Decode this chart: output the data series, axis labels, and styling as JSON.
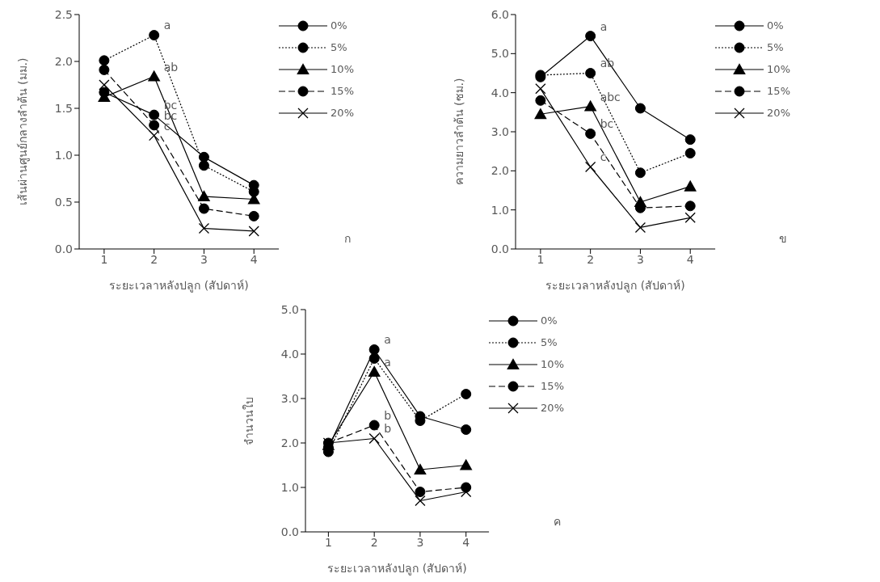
{
  "chart_data": [
    {
      "type": "line",
      "ylabel": "เส้นผ่านศูนย์กลางลำต้น (มม.)",
      "xlabel": "ระยะเวลาหลังปลูก (สัปดาห์)",
      "categories": [
        "1",
        "2",
        "3",
        "4"
      ],
      "ylim": [
        0,
        2.5
      ],
      "yticks": [
        {
          "value": 0,
          "label": "0.0"
        },
        {
          "value": 0.5,
          "label": "0.5"
        },
        {
          "value": 1,
          "label": "1.0"
        },
        {
          "value": 1.5,
          "label": "1.5"
        },
        {
          "value": 2,
          "label": "2.0"
        },
        {
          "value": 2.5,
          "label": "2.5"
        }
      ],
      "legend": "top right",
      "series": [
        {
          "name": "0%",
          "color": "#000000",
          "marker": "circle",
          "line_style": "solid",
          "values": [
            1.67,
            1.43,
            0.98,
            0.68
          ]
        },
        {
          "name": "5%",
          "color": "#000000",
          "marker": "circle",
          "line_style": "dotted",
          "values": [
            2.01,
            2.28,
            0.89,
            0.61
          ]
        },
        {
          "name": "10%",
          "color": "#000000",
          "marker": "triangle",
          "line_style": "solid",
          "values": [
            1.62,
            1.84,
            0.56,
            0.53
          ]
        },
        {
          "name": "15%",
          "color": "#000000",
          "marker": "circle",
          "line_style": "dashed",
          "values": [
            1.91,
            1.32,
            0.43,
            0.35
          ]
        },
        {
          "name": "20%",
          "color": "#000000",
          "marker": "cross",
          "line_style": "solid",
          "values": [
            1.75,
            1.21,
            0.22,
            0.19
          ]
        }
      ],
      "annotations": [
        {
          "text": "a",
          "x": "2",
          "y": 2.28
        },
        {
          "text": "ab",
          "x": "2",
          "y": 1.84
        },
        {
          "text": "bc",
          "x": "2",
          "y": 1.43
        },
        {
          "text": "bc",
          "x": "2",
          "y": 1.32
        },
        {
          "text": "c",
          "x": "2",
          "y": 1.21
        },
        "ก"
      ]
    },
    {
      "type": "line",
      "ylabel": "ความยาวลำต้น (ซม.)",
      "xlabel": "ระยะเวลาหลังปลูก (สัปดาห์)",
      "categories": [
        "1",
        "2",
        "3",
        "4"
      ],
      "ylim": [
        0,
        6
      ],
      "yticks": [
        {
          "value": 0,
          "label": "0.0"
        },
        {
          "value": 1,
          "label": "1.0"
        },
        {
          "value": 2,
          "label": "2.0"
        },
        {
          "value": 3,
          "label": "3.0"
        },
        {
          "value": 4,
          "label": "4.0"
        },
        {
          "value": 5,
          "label": "5.0"
        },
        {
          "value": 6,
          "label": "6.0"
        }
      ],
      "legend": "top right",
      "series": [
        {
          "name": "0%",
          "color": "#000000",
          "marker": "circle",
          "line_style": "solid",
          "values": [
            4.4,
            5.45,
            3.6,
            2.8
          ]
        },
        {
          "name": "5%",
          "color": "#000000",
          "marker": "circle",
          "line_style": "dotted",
          "values": [
            4.45,
            4.5,
            1.95,
            2.45
          ]
        },
        {
          "name": "10%",
          "color": "#000000",
          "marker": "triangle",
          "line_style": "solid",
          "values": [
            3.45,
            3.65,
            1.2,
            1.6
          ]
        },
        {
          "name": "15%",
          "color": "#000000",
          "marker": "circle",
          "line_style": "dashed",
          "values": [
            3.8,
            2.95,
            1.05,
            1.1
          ]
        },
        {
          "name": "20%",
          "color": "#000000",
          "marker": "cross",
          "line_style": "solid",
          "values": [
            4.1,
            2.1,
            0.55,
            0.8
          ]
        }
      ],
      "annotations": [
        {
          "text": "a",
          "x": "2",
          "y": 5.45
        },
        {
          "text": "ab",
          "x": "2",
          "y": 4.5
        },
        {
          "text": "abc",
          "x": "2",
          "y": 3.65
        },
        {
          "text": "bc",
          "x": "2",
          "y": 2.95
        },
        {
          "text": "c",
          "x": "2",
          "y": 2.1
        },
        "ข"
      ]
    },
    {
      "type": "line",
      "ylabel": "จำนวนใบ",
      "xlabel": "ระยะเวลาหลังปลูก (สัปดาห์)",
      "categories": [
        "1",
        "2",
        "3",
        "4"
      ],
      "ylim": [
        0,
        5
      ],
      "yticks": [
        {
          "value": 0,
          "label": "0.0"
        },
        {
          "value": 1,
          "label": "1.0"
        },
        {
          "value": 2,
          "label": "2.0"
        },
        {
          "value": 3,
          "label": "3.0"
        },
        {
          "value": 4,
          "label": "4.0"
        },
        {
          "value": 5,
          "label": "5.0"
        }
      ],
      "legend": "top right",
      "series": [
        {
          "name": "0%",
          "color": "#000000",
          "marker": "circle",
          "line_style": "solid",
          "values": [
            1.9,
            4.1,
            2.6,
            2.3
          ]
        },
        {
          "name": "5%",
          "color": "#000000",
          "marker": "circle",
          "line_style": "dotted",
          "values": [
            1.8,
            3.9,
            2.5,
            3.1
          ]
        },
        {
          "name": "10%",
          "color": "#000000",
          "marker": "triangle",
          "line_style": "solid",
          "values": [
            1.95,
            3.6,
            1.4,
            1.5
          ]
        },
        {
          "name": "15%",
          "color": "#000000",
          "marker": "circle",
          "line_style": "dashed",
          "values": [
            2.0,
            2.4,
            0.9,
            1.0
          ]
        },
        {
          "name": "20%",
          "color": "#000000",
          "marker": "cross",
          "line_style": "solid",
          "values": [
            2.0,
            2.1,
            0.7,
            0.9
          ]
        }
      ],
      "annotations": [
        {
          "text": "a",
          "x": "2",
          "y": 4.1
        },
        {
          "text": "a",
          "x": "2",
          "y": 3.6
        },
        {
          "text": "b",
          "x": "2",
          "y": 2.4
        },
        {
          "text": "b",
          "x": "2",
          "y": 2.1
        },
        "ค"
      ]
    }
  ]
}
